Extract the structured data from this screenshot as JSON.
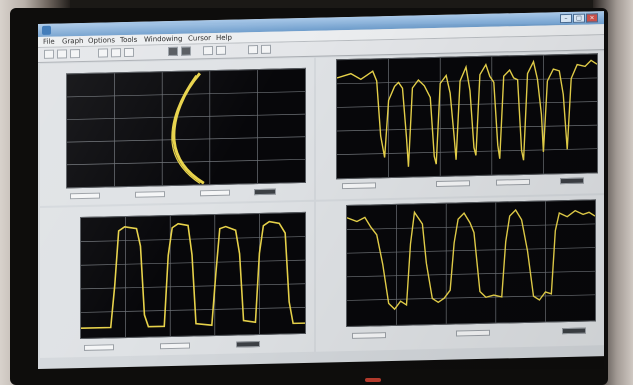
{
  "window": {
    "title": "",
    "buttons": [
      "–",
      "□",
      "×"
    ]
  },
  "menu": {
    "items": [
      "File",
      "Graph",
      "Options",
      "Tools",
      "Windowing",
      "Cursor",
      "Help"
    ]
  },
  "toolbar": {
    "icons": [
      "pointer-icon",
      "zoom-icon",
      "pan-icon",
      "autoscale-icon",
      "cursor-icon",
      "grid-icon",
      "color-icon",
      "export-icon",
      "print-icon",
      "check-icon",
      "undo-icon",
      "redo-icon"
    ]
  },
  "plots": [
    {
      "id": "top-left",
      "ylabel": "",
      "y_ticks": [
        "",
        "",
        "",
        "",
        ""
      ],
      "x_ticks": [
        "",
        "",
        "",
        "",
        ""
      ]
    },
    {
      "id": "top-right",
      "ylabel": "",
      "y_ticks": [
        "",
        "",
        "",
        "",
        ""
      ],
      "x_ticks": [
        "",
        "",
        "",
        "",
        ""
      ]
    },
    {
      "id": "bottom-left",
      "ylabel": "",
      "y_ticks": [
        "",
        "",
        "",
        "",
        ""
      ],
      "x_ticks": [
        "",
        "",
        "",
        "",
        ""
      ]
    },
    {
      "id": "bottom-right",
      "ylabel": "",
      "y_ticks": [
        "",
        "",
        "",
        "",
        ""
      ],
      "x_ticks": [
        "",
        "",
        "",
        "",
        ""
      ]
    }
  ],
  "colors": {
    "trace": "#e8d34a",
    "plot_bg": "#07070a",
    "grid": "#6f7378",
    "window_bg": "#d4d8dc"
  }
}
